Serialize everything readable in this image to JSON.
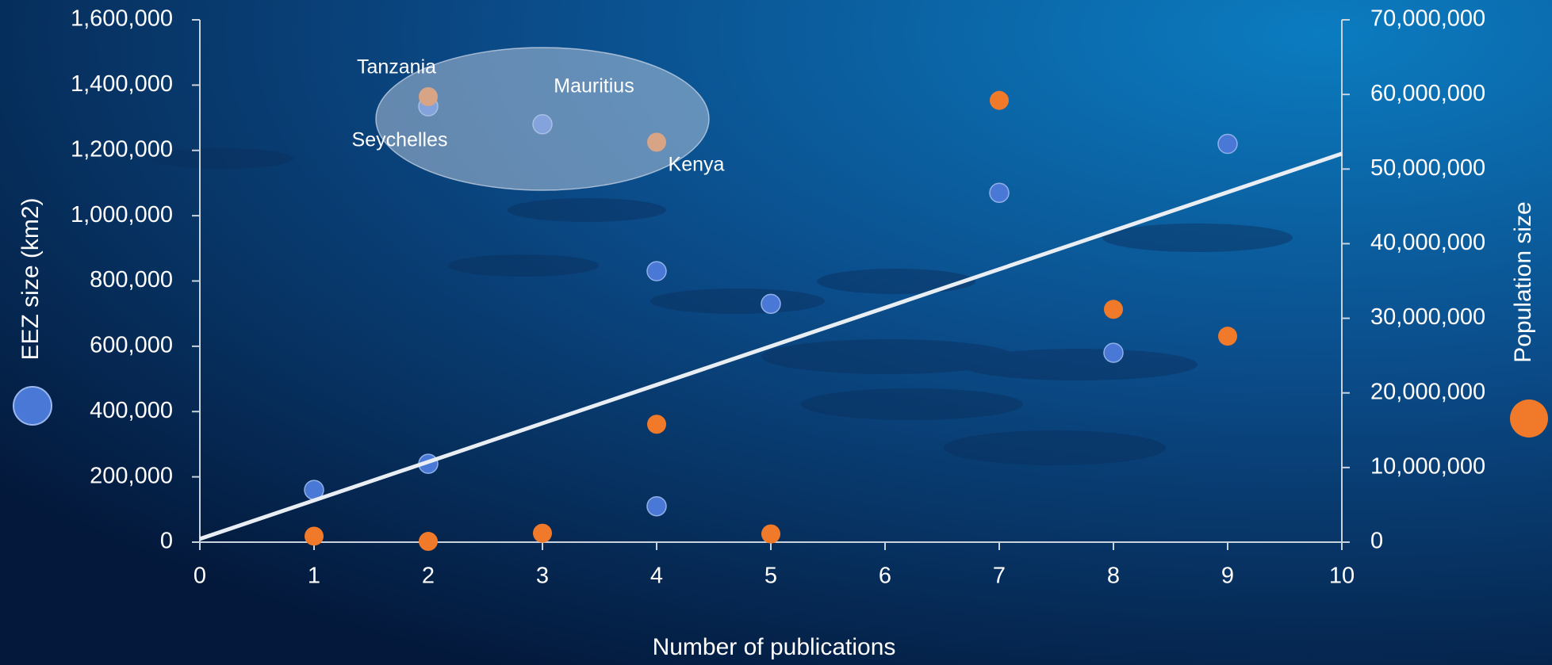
{
  "chart_data": {
    "type": "scatter",
    "x_label": "Number of publications",
    "y_label": "EEZ size (km2)",
    "y2_label": "Population size",
    "xlim": [
      0,
      10
    ],
    "xticks": [
      0,
      1,
      2,
      3,
      4,
      5,
      6,
      7,
      8,
      9,
      10
    ],
    "ylim": [
      0,
      1600000
    ],
    "yticks": [
      {
        "value": 0,
        "label": "0"
      },
      {
        "value": 200000,
        "label": "200,000"
      },
      {
        "value": 400000,
        "label": "400,000"
      },
      {
        "value": 600000,
        "label": "600,000"
      },
      {
        "value": 800000,
        "label": "800,000"
      },
      {
        "value": 1000000,
        "label": "1,000,000"
      },
      {
        "value": 1200000,
        "label": "1,200,000"
      },
      {
        "value": 1400000,
        "label": "1,400,000"
      },
      {
        "value": 1600000,
        "label": "1,600,000"
      }
    ],
    "y2lim": [
      0,
      70000000
    ],
    "y2ticks": [
      {
        "value": 0,
        "label": "0"
      },
      {
        "value": 10000000,
        "label": "10,000,000"
      },
      {
        "value": 20000000,
        "label": "20,000,000"
      },
      {
        "value": 30000000,
        "label": "30,000,000"
      },
      {
        "value": 40000000,
        "label": "40,000,000"
      },
      {
        "value": 50000000,
        "label": "50,000,000"
      },
      {
        "value": 60000000,
        "label": "60,000,000"
      },
      {
        "value": 70000000,
        "label": "70,000,000"
      }
    ],
    "series": [
      {
        "color": "#4a78d6",
        "axis": "y",
        "x": [
          1,
          2,
          2,
          3,
          4,
          4,
          5,
          7,
          8,
          9
        ],
        "values": [
          160000,
          240000,
          1335000,
          1280000,
          830000,
          110000,
          730000,
          1070000,
          580000,
          1220000
        ]
      },
      {
        "color": "#f07a2a",
        "axis": "y2",
        "x": [
          1,
          2,
          2,
          3,
          4,
          4,
          5,
          7,
          8,
          9
        ],
        "values": [
          800000,
          100000,
          59700000,
          1200000,
          53600000,
          15800000,
          1100000,
          59200000,
          31200000,
          27600000
        ]
      }
    ],
    "trend_line": {
      "color": "#e8eef4",
      "x": [
        0,
        10
      ],
      "values": [
        10000,
        1190000
      ]
    },
    "annotations": [
      "Tanzania",
      "Mauritius",
      "Seychelles",
      "Kenya"
    ]
  }
}
